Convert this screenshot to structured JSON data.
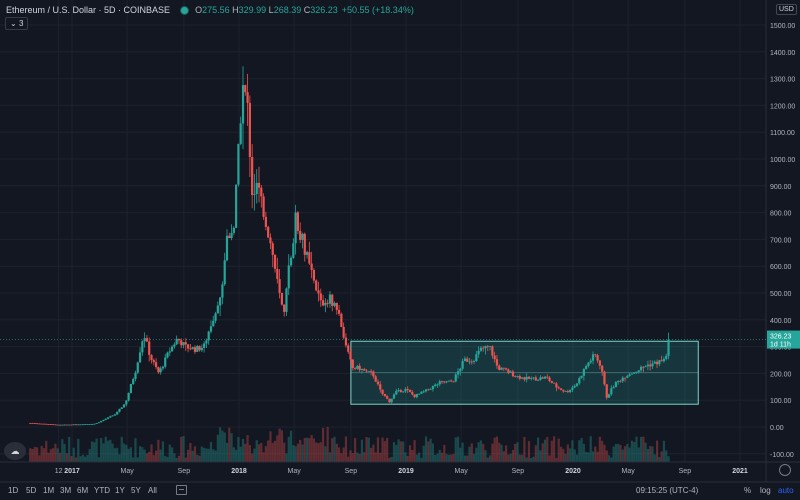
{
  "legend": {
    "symbol": "Ethereum / U.S. Dollar",
    "interval": "5D",
    "exchange": "COINBASE",
    "open_key": "O",
    "open": "275.56",
    "high_key": "H",
    "high": "329.99",
    "low_key": "L",
    "low": "268.39",
    "close_key": "C",
    "close": "326.23",
    "change": "+50.55 (+18.34%)"
  },
  "collapse_label": "3",
  "currency_badge": "USD",
  "price_label": {
    "price": "326.23",
    "countdown": "1d 11h"
  },
  "toolbar": {
    "timeframes": [
      "1D",
      "5D",
      "1M",
      "3M",
      "6M",
      "YTD",
      "1Y",
      "5Y",
      "All"
    ],
    "time": "09:15:25 (UTC-4)",
    "percent": "%",
    "log": "log",
    "auto": "auto"
  },
  "chart_data": {
    "type": "candlestick",
    "y_axis_ticks": [
      "1500.00",
      "1400.00",
      "1300.00",
      "1200.00",
      "1100.00",
      "1000.00",
      "900.00",
      "800.00",
      "700.00",
      "600.00",
      "500.00",
      "400.00",
      "300.00",
      "200.00",
      "100.00",
      "0.00",
      "-100.00"
    ],
    "x_axis_ticks": [
      "12",
      "2017",
      "May",
      "Sep",
      "2018",
      "May",
      "Sep",
      "2019",
      "May",
      "Sep",
      "2020",
      "May",
      "Sep",
      "2021"
    ],
    "ylim": [
      -100,
      1500
    ],
    "last_price": 326.23,
    "price_path": [
      [
        2016.75,
        15
      ],
      [
        2016.92,
        8
      ],
      [
        2017.05,
        10
      ],
      [
        2017.14,
        12
      ],
      [
        2017.2,
        30
      ],
      [
        2017.26,
        48
      ],
      [
        2017.32,
        90
      ],
      [
        2017.38,
        210
      ],
      [
        2017.43,
        350
      ],
      [
        2017.47,
        260
      ],
      [
        2017.52,
        200
      ],
      [
        2017.58,
        280
      ],
      [
        2017.63,
        330
      ],
      [
        2017.68,
        300
      ],
      [
        2017.74,
        290
      ],
      [
        2017.79,
        300
      ],
      [
        2017.84,
        400
      ],
      [
        2017.89,
        480
      ],
      [
        2017.93,
        720
      ],
      [
        2017.97,
        750
      ],
      [
        2018.0,
        1050
      ],
      [
        2018.02,
        1280
      ],
      [
        2018.05,
        1200
      ],
      [
        2018.08,
        870
      ],
      [
        2018.11,
        900
      ],
      [
        2018.15,
        800
      ],
      [
        2018.2,
        650
      ],
      [
        2018.24,
        500
      ],
      [
        2018.27,
        410
      ],
      [
        2018.3,
        600
      ],
      [
        2018.34,
        780
      ],
      [
        2018.38,
        700
      ],
      [
        2018.42,
        600
      ],
      [
        2018.46,
        510
      ],
      [
        2018.5,
        460
      ],
      [
        2018.55,
        480
      ],
      [
        2018.6,
        420
      ],
      [
        2018.64,
        300
      ],
      [
        2018.68,
        220
      ],
      [
        2018.72,
        220
      ],
      [
        2018.76,
        205
      ],
      [
        2018.8,
        200
      ],
      [
        2018.85,
        130
      ],
      [
        2018.9,
        95
      ],
      [
        2018.94,
        130
      ],
      [
        2019.0,
        140
      ],
      [
        2019.05,
        115
      ],
      [
        2019.12,
        135
      ],
      [
        2019.2,
        165
      ],
      [
        2019.28,
        170
      ],
      [
        2019.35,
        250
      ],
      [
        2019.4,
        250
      ],
      [
        2019.45,
        290
      ],
      [
        2019.5,
        300
      ],
      [
        2019.55,
        220
      ],
      [
        2019.6,
        210
      ],
      [
        2019.66,
        190
      ],
      [
        2019.72,
        180
      ],
      [
        2019.78,
        180
      ],
      [
        2019.84,
        185
      ],
      [
        2019.9,
        150
      ],
      [
        2019.96,
        130
      ],
      [
        2020.02,
        160
      ],
      [
        2020.08,
        230
      ],
      [
        2020.13,
        270
      ],
      [
        2020.17,
        225
      ],
      [
        2020.2,
        110
      ],
      [
        2020.25,
        160
      ],
      [
        2020.32,
        195
      ],
      [
        2020.38,
        210
      ],
      [
        2020.44,
        230
      ],
      [
        2020.5,
        240
      ],
      [
        2020.55,
        250
      ],
      [
        2020.58,
        326.23
      ]
    ],
    "annotations": {
      "range_box": {
        "x_start": 2018.67,
        "x_end": 2020.75,
        "y_low": 85,
        "y_high": 320
      }
    },
    "grid": true
  }
}
